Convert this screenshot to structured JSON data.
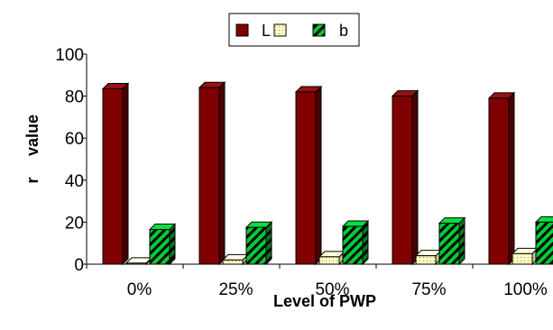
{
  "chart_data": {
    "type": "bar",
    "title": "",
    "xlabel": "Level of PWP",
    "ylabel": "value",
    "ylabel_prefix": "r",
    "categories": [
      "0%",
      "25%",
      "50%",
      "75%",
      "100%"
    ],
    "ylim": [
      0,
      100
    ],
    "yticks": [
      0,
      20,
      40,
      60,
      80,
      100
    ],
    "bar_style": "3d",
    "grid": false,
    "legend_position": "top",
    "series": [
      {
        "name": "L",
        "color": "#800000",
        "side_color": "#4a0000",
        "pattern": "solid",
        "values": [
          83.5,
          84,
          82,
          80,
          79
        ]
      },
      {
        "name": "",
        "color": "#ffffc0",
        "side_color": "#c8c890",
        "pattern": "dotted",
        "values": [
          0.5,
          2,
          3.5,
          4,
          5
        ]
      },
      {
        "name": "b",
        "color": "#00cc33",
        "side_color": "#007a1f",
        "pattern": "hatched",
        "values": [
          16.5,
          17.5,
          18,
          19.5,
          20
        ]
      }
    ]
  }
}
